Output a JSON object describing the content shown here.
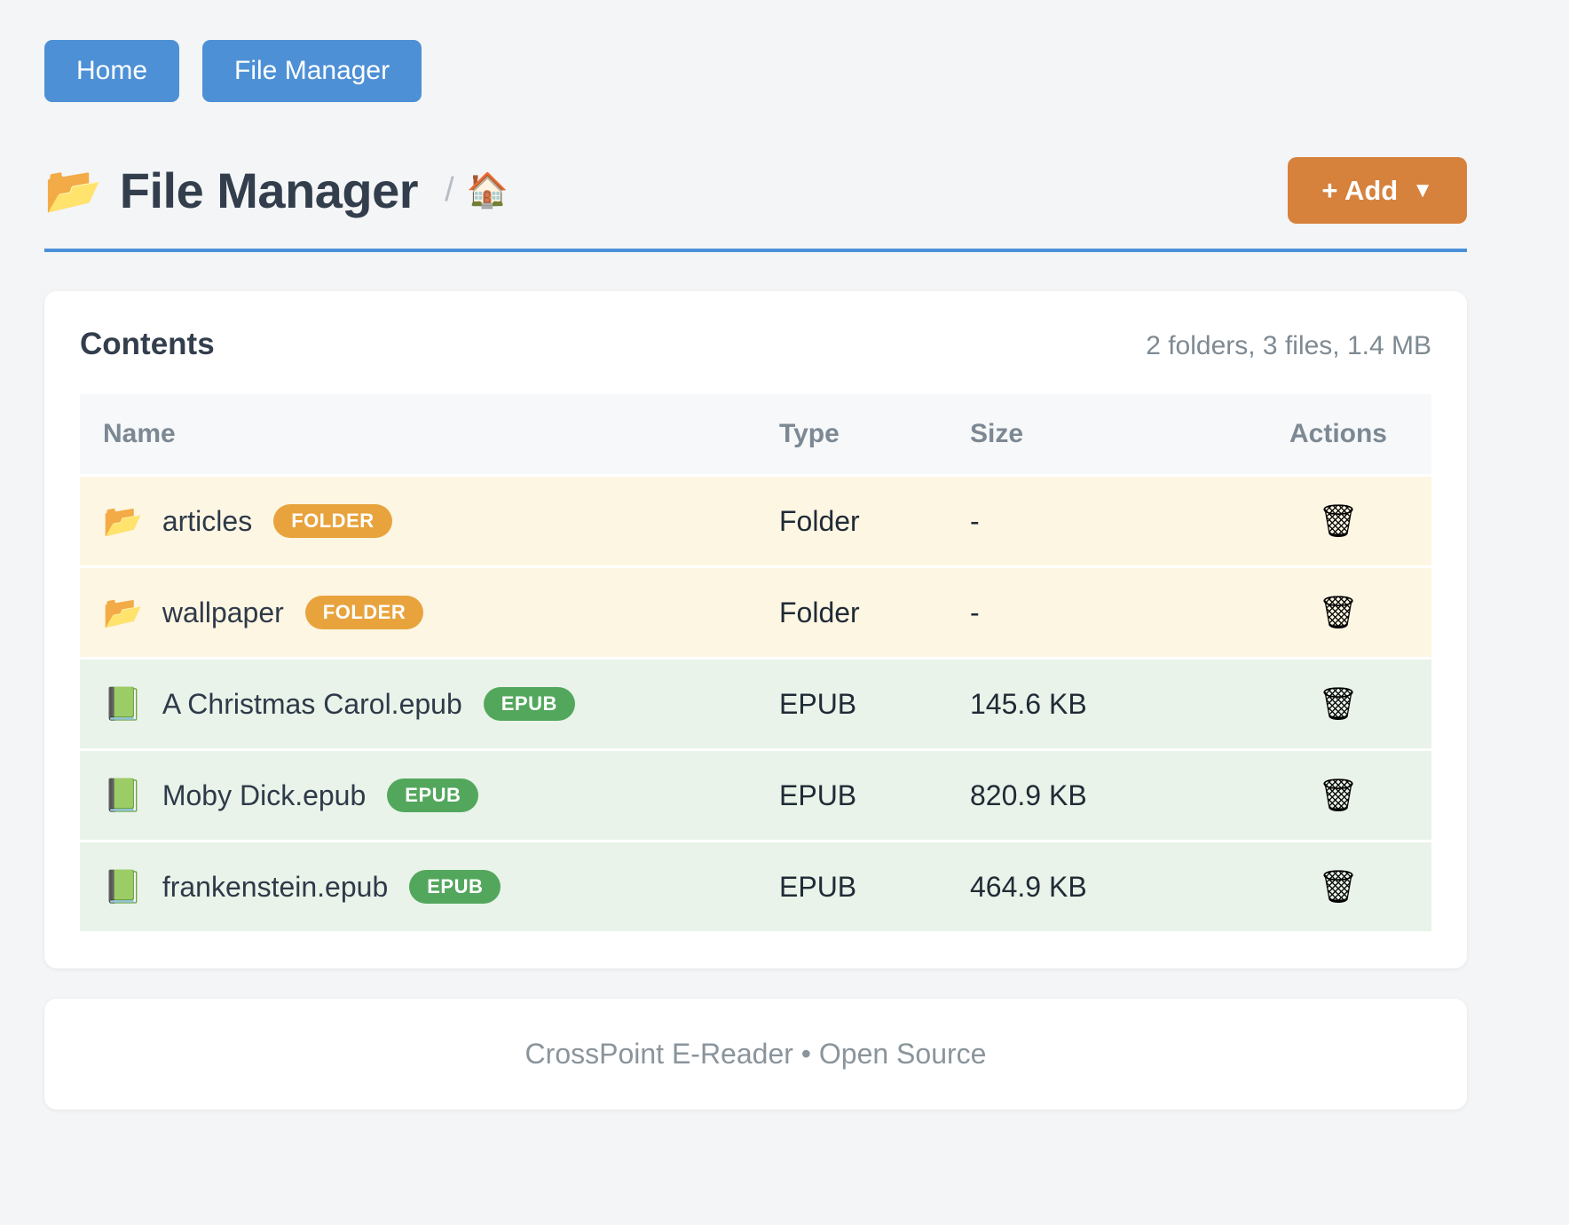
{
  "nav": {
    "home_label": "Home",
    "file_manager_label": "File Manager"
  },
  "header": {
    "title_icon": "📂",
    "title": "File Manager",
    "breadcrumb_separator": "/",
    "breadcrumb_home_icon": "🏠",
    "add_button_label": "+ Add",
    "add_button_caret": "▼"
  },
  "contents": {
    "title": "Contents",
    "summary": "2 folders, 3 files, 1.4 MB",
    "columns": {
      "name": "Name",
      "type": "Type",
      "size": "Size",
      "actions": "Actions"
    },
    "action_icon": "🗑",
    "rows": [
      {
        "icon": "📂",
        "name": "articles",
        "badge": "FOLDER",
        "badge_type": "folder",
        "type": "Folder",
        "size": "-"
      },
      {
        "icon": "📂",
        "name": "wallpaper",
        "badge": "FOLDER",
        "badge_type": "folder",
        "type": "Folder",
        "size": "-"
      },
      {
        "icon": "📗",
        "name": "A Christmas Carol.epub",
        "badge": "EPUB",
        "badge_type": "epub",
        "type": "EPUB",
        "size": "145.6 KB"
      },
      {
        "icon": "📗",
        "name": "Moby Dick.epub",
        "badge": "EPUB",
        "badge_type": "epub",
        "type": "EPUB",
        "size": "820.9 KB"
      },
      {
        "icon": "📗",
        "name": "frankenstein.epub",
        "badge": "EPUB",
        "badge_type": "epub",
        "type": "EPUB",
        "size": "464.9 KB"
      }
    ]
  },
  "footer": {
    "text": "CrossPoint E-Reader • Open Source"
  },
  "colors": {
    "nav_button_blue": "#4d90d5",
    "divider_blue": "#4a90d9",
    "add_button_orange": "#d6813c",
    "folder_badge_orange": "#e8a33d",
    "epub_badge_green": "#53a75d",
    "folder_row_bg": "#fdf6e3",
    "epub_row_bg": "#e9f3e9",
    "page_bg": "#f4f5f6"
  }
}
